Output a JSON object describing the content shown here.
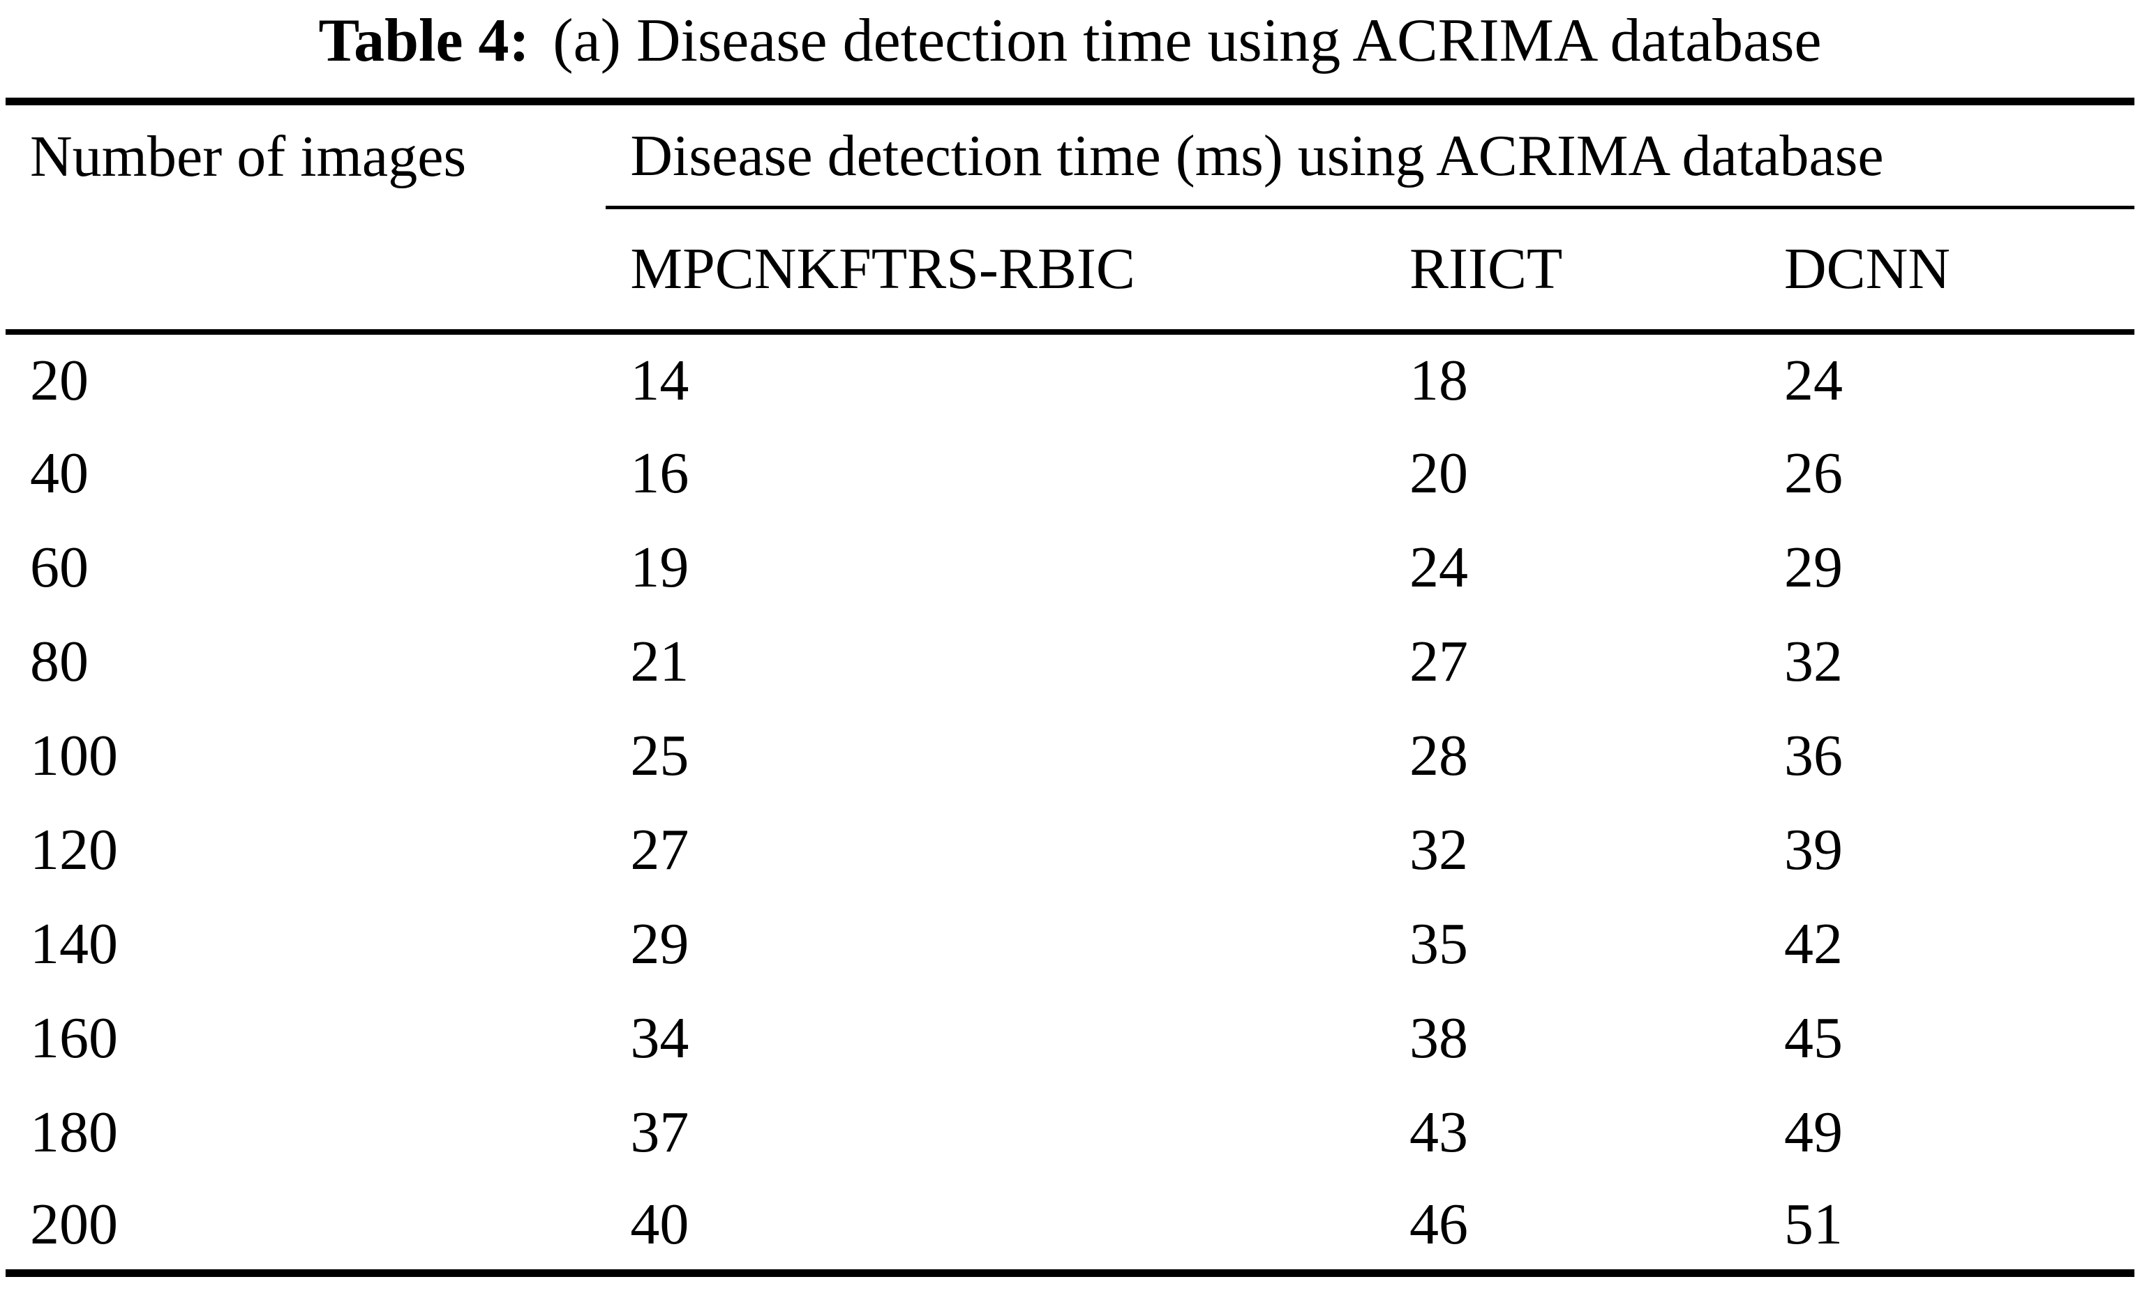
{
  "caption": {
    "label": "Table 4:",
    "text": "(a) Disease detection time using ACRIMA database"
  },
  "table": {
    "col1_header": "Number of images",
    "group_header": "Disease detection time (ms) using ACRIMA database",
    "method_headers": [
      "MPCNKFTRS-RBIC",
      "RIICT",
      "DCNN"
    ],
    "rows": [
      [
        "20",
        "14",
        "18",
        "24"
      ],
      [
        "40",
        "16",
        "20",
        "26"
      ],
      [
        "60",
        "19",
        "24",
        "29"
      ],
      [
        "80",
        "21",
        "27",
        "32"
      ],
      [
        "100",
        "25",
        "28",
        "36"
      ],
      [
        "120",
        "27",
        "32",
        "39"
      ],
      [
        "140",
        "29",
        "35",
        "42"
      ],
      [
        "160",
        "34",
        "38",
        "45"
      ],
      [
        "180",
        "37",
        "43",
        "49"
      ],
      [
        "200",
        "40",
        "46",
        "51"
      ]
    ]
  },
  "chart_data": {
    "type": "table",
    "title": "Table 4: (a) Disease detection time using ACRIMA database",
    "columns": [
      "Number of images",
      "MPCNKFTRS-RBIC",
      "RIICT",
      "DCNN"
    ],
    "units": "ms",
    "categories": [
      20,
      40,
      60,
      80,
      100,
      120,
      140,
      160,
      180,
      200
    ],
    "series": [
      {
        "name": "MPCNKFTRS-RBIC",
        "values": [
          14,
          16,
          19,
          21,
          25,
          27,
          29,
          34,
          37,
          40
        ]
      },
      {
        "name": "RIICT",
        "values": [
          18,
          20,
          24,
          27,
          28,
          32,
          35,
          38,
          43,
          46
        ]
      },
      {
        "name": "DCNN",
        "values": [
          24,
          26,
          29,
          32,
          36,
          39,
          42,
          45,
          49,
          51
        ]
      }
    ]
  },
  "colors": {
    "text": "#000000",
    "background": "#ffffff",
    "rule": "#000000"
  }
}
